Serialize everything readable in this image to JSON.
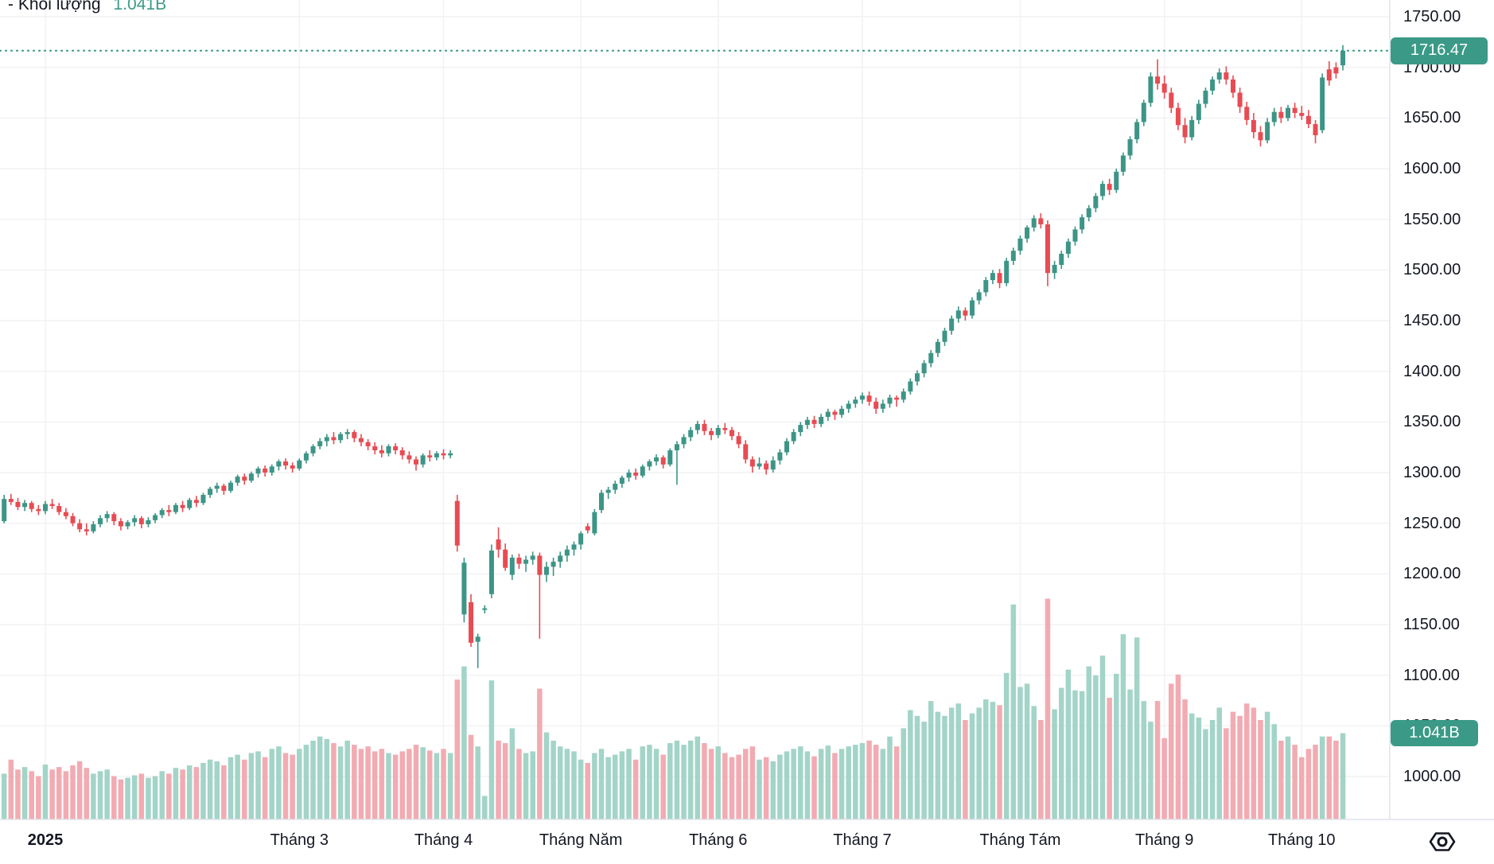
{
  "legend": {
    "label": "- Khối lượng",
    "value": "1.041B"
  },
  "badges": {
    "price": "1716.47",
    "volume": "1.041B"
  },
  "colors": {
    "up": "#3d9587",
    "down": "#e84b52",
    "vol_up": "#a3d4c8",
    "vol_down": "#f2abb2",
    "accent": "#3b9a87",
    "text": "#131722",
    "grid": "#f1f2f4",
    "axis_line": "#e0e3eb",
    "badge_text": "#ffffff"
  },
  "y_axis": {
    "min": 1000,
    "max": 1750,
    "step": 50,
    "decimals": 2
  },
  "x_axis": {
    "ticks": [
      {
        "i": 6,
        "label": "2025",
        "bold": true
      },
      {
        "i": 43,
        "label": "Tháng 3"
      },
      {
        "i": 64,
        "label": "Tháng 4"
      },
      {
        "i": 84,
        "label": "Tháng Năm"
      },
      {
        "i": 104,
        "label": "Tháng 6"
      },
      {
        "i": 125,
        "label": "Tháng 7"
      },
      {
        "i": 148,
        "label": "Tháng Tám"
      },
      {
        "i": 169,
        "label": "Tháng 9"
      },
      {
        "i": 189,
        "label": "Tháng 10"
      }
    ]
  },
  "icons": {
    "bottom_right": "hexagon-eye"
  },
  "chart_data": {
    "type": "candlestick_with_volume",
    "title": "Khối lượng",
    "last_price": 1716.47,
    "last_volume_billions": 1.041,
    "ylim": [
      1000,
      1750
    ],
    "grid": true,
    "legend_position": "top-left",
    "price_axis_side": "right",
    "candles_ohlcv": [
      [
        1252,
        1278,
        1250,
        1274,
        0.55
      ],
      [
        1274,
        1279,
        1268,
        1271,
        0.72
      ],
      [
        1271,
        1275,
        1263,
        1266,
        0.6
      ],
      [
        1266,
        1273,
        1262,
        1270,
        0.63
      ],
      [
        1270,
        1272,
        1261,
        1264,
        0.58
      ],
      [
        1264,
        1268,
        1258,
        1262,
        0.52
      ],
      [
        1262,
        1272,
        1259,
        1269,
        0.66
      ],
      [
        1269,
        1274,
        1264,
        1267,
        0.6
      ],
      [
        1267,
        1270,
        1258,
        1261,
        0.63
      ],
      [
        1261,
        1265,
        1254,
        1257,
        0.58
      ],
      [
        1257,
        1260,
        1247,
        1250,
        0.65
      ],
      [
        1250,
        1254,
        1241,
        1244,
        0.7
      ],
      [
        1244,
        1250,
        1238,
        1242,
        0.62
      ],
      [
        1242,
        1252,
        1240,
        1249,
        0.55
      ],
      [
        1249,
        1258,
        1246,
        1255,
        0.58
      ],
      [
        1255,
        1262,
        1251,
        1259,
        0.6
      ],
      [
        1259,
        1261,
        1248,
        1252,
        0.52
      ],
      [
        1252,
        1255,
        1243,
        1247,
        0.48
      ],
      [
        1247,
        1253,
        1244,
        1251,
        0.5
      ],
      [
        1251,
        1258,
        1247,
        1255,
        0.53
      ],
      [
        1255,
        1257,
        1245,
        1249,
        0.55
      ],
      [
        1249,
        1256,
        1246,
        1253,
        0.5
      ],
      [
        1253,
        1260,
        1250,
        1258,
        0.52
      ],
      [
        1258,
        1265,
        1255,
        1263,
        0.58
      ],
      [
        1263,
        1268,
        1257,
        1261,
        0.55
      ],
      [
        1261,
        1270,
        1259,
        1268,
        0.62
      ],
      [
        1268,
        1272,
        1261,
        1265,
        0.6
      ],
      [
        1265,
        1275,
        1263,
        1273,
        0.65
      ],
      [
        1273,
        1277,
        1266,
        1270,
        0.63
      ],
      [
        1270,
        1280,
        1268,
        1278,
        0.68
      ],
      [
        1278,
        1286,
        1275,
        1284,
        0.72
      ],
      [
        1284,
        1290,
        1280,
        1287,
        0.7
      ],
      [
        1287,
        1289,
        1278,
        1282,
        0.65
      ],
      [
        1282,
        1292,
        1280,
        1290,
        0.75
      ],
      [
        1290,
        1298,
        1287,
        1296,
        0.78
      ],
      [
        1296,
        1299,
        1288,
        1292,
        0.72
      ],
      [
        1292,
        1301,
        1290,
        1299,
        0.8
      ],
      [
        1299,
        1306,
        1295,
        1304,
        0.82
      ],
      [
        1304,
        1307,
        1296,
        1300,
        0.75
      ],
      [
        1300,
        1308,
        1297,
        1306,
        0.85
      ],
      [
        1306,
        1313,
        1302,
        1311,
        0.88
      ],
      [
        1311,
        1314,
        1303,
        1307,
        0.8
      ],
      [
        1307,
        1310,
        1300,
        1304,
        0.78
      ],
      [
        1304,
        1314,
        1302,
        1312,
        0.85
      ],
      [
        1312,
        1321,
        1309,
        1319,
        0.9
      ],
      [
        1319,
        1328,
        1316,
        1326,
        0.95
      ],
      [
        1326,
        1334,
        1323,
        1331,
        1.0
      ],
      [
        1331,
        1338,
        1326,
        1335,
        0.97
      ],
      [
        1335,
        1340,
        1328,
        1332,
        0.92
      ],
      [
        1332,
        1340,
        1329,
        1338,
        0.88
      ],
      [
        1338,
        1343,
        1333,
        1340,
        0.95
      ],
      [
        1340,
        1342,
        1330,
        1334,
        0.9
      ],
      [
        1334,
        1338,
        1326,
        1330,
        0.85
      ],
      [
        1330,
        1333,
        1322,
        1326,
        0.88
      ],
      [
        1326,
        1330,
        1318,
        1322,
        0.82
      ],
      [
        1322,
        1327,
        1315,
        1319,
        0.85
      ],
      [
        1319,
        1328,
        1316,
        1326,
        0.8
      ],
      [
        1326,
        1329,
        1318,
        1322,
        0.78
      ],
      [
        1322,
        1325,
        1313,
        1317,
        0.82
      ],
      [
        1317,
        1321,
        1309,
        1313,
        0.85
      ],
      [
        1313,
        1316,
        1302,
        1308,
        0.9
      ],
      [
        1308,
        1319,
        1305,
        1317,
        0.87
      ],
      [
        1317,
        1322,
        1311,
        1315,
        0.83
      ],
      [
        1315,
        1321,
        1312,
        1319,
        0.8
      ],
      [
        1319,
        1323,
        1313,
        1317,
        0.85
      ],
      [
        1317,
        1322,
        1314,
        1319,
        0.8
      ],
      [
        1272,
        1278,
        1222,
        1228,
        1.69
      ],
      [
        1160,
        1216,
        1152,
        1211,
        1.85
      ],
      [
        1172,
        1180,
        1128,
        1132,
        1.02
      ],
      [
        1133,
        1141,
        1107,
        1138,
        0.88
      ],
      [
        1165,
        1169,
        1161,
        1166,
        0.28
      ],
      [
        1180,
        1229,
        1176,
        1223,
        1.68
      ],
      [
        1234,
        1246,
        1216,
        1224,
        0.95
      ],
      [
        1224,
        1230,
        1203,
        1206,
        0.92
      ],
      [
        1199,
        1219,
        1194,
        1216,
        1.1
      ],
      [
        1216,
        1220,
        1205,
        1210,
        0.85
      ],
      [
        1210,
        1218,
        1202,
        1214,
        0.8
      ],
      [
        1214,
        1222,
        1209,
        1218,
        0.82
      ],
      [
        1218,
        1221,
        1136,
        1199,
        1.58
      ],
      [
        1199,
        1212,
        1192,
        1207,
        1.05
      ],
      [
        1207,
        1216,
        1198,
        1212,
        0.95
      ],
      [
        1212,
        1222,
        1206,
        1218,
        0.88
      ],
      [
        1218,
        1228,
        1212,
        1224,
        0.85
      ],
      [
        1224,
        1232,
        1218,
        1229,
        0.82
      ],
      [
        1229,
        1242,
        1224,
        1240,
        0.72
      ],
      [
        1247,
        1250,
        1240,
        1243,
        0.68
      ],
      [
        1240,
        1264,
        1238,
        1261,
        0.8
      ],
      [
        1263,
        1283,
        1260,
        1280,
        0.85
      ],
      [
        1280,
        1286,
        1274,
        1283,
        0.75
      ],
      [
        1283,
        1292,
        1279,
        1289,
        0.78
      ],
      [
        1289,
        1297,
        1285,
        1295,
        0.82
      ],
      [
        1295,
        1303,
        1291,
        1300,
        0.85
      ],
      [
        1300,
        1304,
        1293,
        1297,
        0.72
      ],
      [
        1297,
        1308,
        1295,
        1306,
        0.88
      ],
      [
        1306,
        1313,
        1302,
        1311,
        0.9
      ],
      [
        1311,
        1318,
        1307,
        1315,
        0.85
      ],
      [
        1315,
        1317,
        1304,
        1308,
        0.78
      ],
      [
        1308,
        1324,
        1306,
        1322,
        0.92
      ],
      [
        1322,
        1331,
        1288,
        1328,
        0.95
      ],
      [
        1328,
        1338,
        1324,
        1335,
        0.9
      ],
      [
        1335,
        1345,
        1331,
        1342,
        0.95
      ],
      [
        1342,
        1351,
        1338,
        1348,
        1.0
      ],
      [
        1348,
        1352,
        1337,
        1341,
        0.92
      ],
      [
        1341,
        1344,
        1332,
        1337,
        0.85
      ],
      [
        1337,
        1347,
        1334,
        1344,
        0.88
      ],
      [
        1344,
        1349,
        1338,
        1342,
        0.8
      ],
      [
        1342,
        1345,
        1332,
        1336,
        0.75
      ],
      [
        1336,
        1340,
        1324,
        1328,
        0.78
      ],
      [
        1328,
        1332,
        1309,
        1313,
        0.85
      ],
      [
        1313,
        1316,
        1300,
        1306,
        0.88
      ],
      [
        1306,
        1315,
        1303,
        1309,
        0.72
      ],
      [
        1309,
        1312,
        1298,
        1303,
        0.75
      ],
      [
        1303,
        1316,
        1300,
        1312,
        0.7
      ],
      [
        1312,
        1323,
        1308,
        1320,
        0.78
      ],
      [
        1320,
        1334,
        1317,
        1331,
        0.82
      ],
      [
        1331,
        1343,
        1328,
        1340,
        0.85
      ],
      [
        1340,
        1350,
        1336,
        1347,
        0.88
      ],
      [
        1347,
        1355,
        1343,
        1352,
        0.82
      ],
      [
        1352,
        1356,
        1344,
        1348,
        0.76
      ],
      [
        1348,
        1358,
        1345,
        1355,
        0.85
      ],
      [
        1355,
        1363,
        1351,
        1360,
        0.89
      ],
      [
        1360,
        1362,
        1352,
        1357,
        0.8
      ],
      [
        1357,
        1366,
        1354,
        1363,
        0.85
      ],
      [
        1363,
        1371,
        1359,
        1368,
        0.88
      ],
      [
        1368,
        1375,
        1364,
        1372,
        0.9
      ],
      [
        1372,
        1379,
        1368,
        1376,
        0.92
      ],
      [
        1376,
        1380,
        1366,
        1370,
        0.95
      ],
      [
        1370,
        1374,
        1358,
        1363,
        0.9
      ],
      [
        1363,
        1372,
        1359,
        1368,
        0.85
      ],
      [
        1368,
        1377,
        1364,
        1374,
        1.0
      ],
      [
        1374,
        1376,
        1365,
        1372,
        0.88
      ],
      [
        1372,
        1383,
        1369,
        1380,
        1.1
      ],
      [
        1380,
        1393,
        1377,
        1390,
        1.32
      ],
      [
        1390,
        1401,
        1386,
        1398,
        1.25
      ],
      [
        1398,
        1411,
        1394,
        1408,
        1.18
      ],
      [
        1408,
        1421,
        1404,
        1418,
        1.43
      ],
      [
        1418,
        1432,
        1414,
        1429,
        1.3
      ],
      [
        1429,
        1443,
        1425,
        1440,
        1.25
      ],
      [
        1440,
        1455,
        1436,
        1452,
        1.35
      ],
      [
        1452,
        1464,
        1448,
        1460,
        1.4
      ],
      [
        1460,
        1463,
        1450,
        1455,
        1.2
      ],
      [
        1455,
        1473,
        1452,
        1470,
        1.28
      ],
      [
        1470,
        1481,
        1466,
        1478,
        1.35
      ],
      [
        1478,
        1493,
        1474,
        1490,
        1.45
      ],
      [
        1490,
        1500,
        1486,
        1497,
        1.42
      ],
      [
        1497,
        1501,
        1482,
        1487,
        1.38
      ],
      [
        1487,
        1512,
        1484,
        1509,
        1.77
      ],
      [
        1509,
        1522,
        1505,
        1519,
        2.6
      ],
      [
        1519,
        1534,
        1515,
        1531,
        1.6
      ],
      [
        1531,
        1544,
        1527,
        1542,
        1.64
      ],
      [
        1542,
        1554,
        1538,
        1551,
        1.37
      ],
      [
        1551,
        1556,
        1541,
        1545,
        1.2
      ],
      [
        1545,
        1549,
        1484,
        1497,
        2.67
      ],
      [
        1497,
        1509,
        1491,
        1505,
        1.33
      ],
      [
        1505,
        1519,
        1501,
        1516,
        1.59
      ],
      [
        1516,
        1531,
        1512,
        1528,
        1.81
      ],
      [
        1528,
        1543,
        1524,
        1540,
        1.56
      ],
      [
        1540,
        1555,
        1536,
        1552,
        1.55
      ],
      [
        1552,
        1564,
        1548,
        1561,
        1.85
      ],
      [
        1561,
        1576,
        1557,
        1573,
        1.74
      ],
      [
        1573,
        1588,
        1569,
        1585,
        1.98
      ],
      [
        1585,
        1590,
        1574,
        1579,
        1.47
      ],
      [
        1579,
        1600,
        1576,
        1597,
        1.76
      ],
      [
        1597,
        1616,
        1593,
        1613,
        2.24
      ],
      [
        1613,
        1632,
        1609,
        1629,
        1.57
      ],
      [
        1629,
        1649,
        1625,
        1646,
        2.2
      ],
      [
        1646,
        1668,
        1642,
        1665,
        1.43
      ],
      [
        1665,
        1695,
        1661,
        1691,
        1.18
      ],
      [
        1691,
        1708,
        1678,
        1684,
        1.43
      ],
      [
        1684,
        1692,
        1669,
        1675,
        0.98
      ],
      [
        1675,
        1680,
        1655,
        1660,
        1.64
      ],
      [
        1660,
        1665,
        1638,
        1643,
        1.75
      ],
      [
        1643,
        1650,
        1625,
        1631,
        1.45
      ],
      [
        1631,
        1652,
        1628,
        1648,
        1.28
      ],
      [
        1648,
        1668,
        1644,
        1664,
        1.23
      ],
      [
        1664,
        1680,
        1660,
        1677,
        1.09
      ],
      [
        1677,
        1691,
        1673,
        1688,
        1.2
      ],
      [
        1688,
        1699,
        1684,
        1695,
        1.35
      ],
      [
        1695,
        1701,
        1683,
        1688,
        1.1
      ],
      [
        1688,
        1692,
        1670,
        1675,
        1.3
      ],
      [
        1675,
        1680,
        1655,
        1661,
        1.25
      ],
      [
        1661,
        1666,
        1643,
        1648,
        1.4
      ],
      [
        1648,
        1655,
        1630,
        1636,
        1.35
      ],
      [
        1636,
        1642,
        1622,
        1628,
        1.2
      ],
      [
        1628,
        1650,
        1625,
        1646,
        1.3
      ],
      [
        1646,
        1660,
        1642,
        1656,
        1.15
      ],
      [
        1656,
        1661,
        1645,
        1650,
        0.95
      ],
      [
        1650,
        1663,
        1647,
        1660,
        1.0
      ],
      [
        1660,
        1665,
        1650,
        1655,
        0.9
      ],
      [
        1655,
        1662,
        1648,
        1652,
        0.75
      ],
      [
        1652,
        1658,
        1640,
        1644,
        0.85
      ],
      [
        1644,
        1648,
        1625,
        1633,
        0.9
      ],
      [
        1638,
        1694,
        1635,
        1690,
        1.0
      ],
      [
        1698,
        1706,
        1682,
        1687,
        1.0
      ],
      [
        1700,
        1705,
        1689,
        1694,
        0.95
      ],
      [
        1702,
        1722,
        1697,
        1716.47,
        1.041
      ]
    ]
  }
}
